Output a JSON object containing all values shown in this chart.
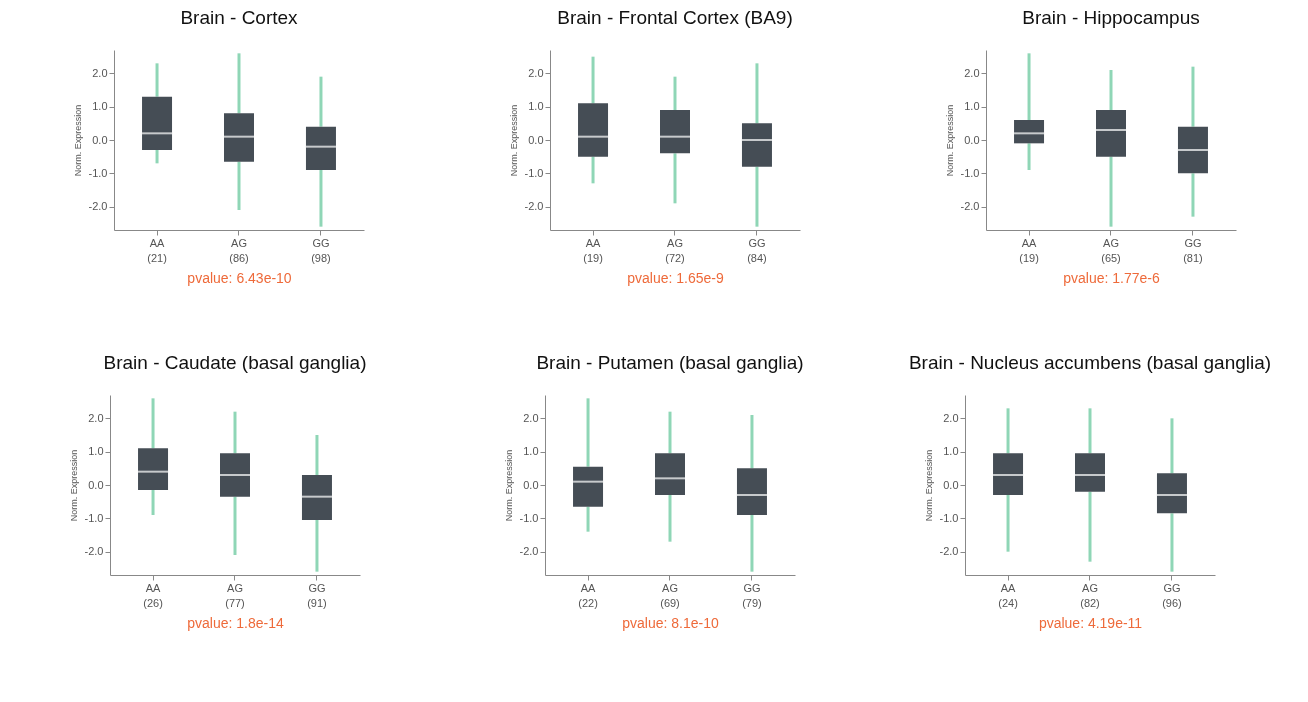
{
  "chart_data": [
    {
      "type": "box",
      "title": "Brain - Cortex",
      "ylabel": "Norm. Expression",
      "categories": [
        "AA\n(21)",
        "AG\n(86)",
        "GG\n(98)"
      ],
      "color": "#454d55",
      "annotations": [
        "pvalue: 6.43e-10"
      ],
      "ylim": [
        -2.7,
        2.7
      ],
      "yticks": [
        {
          "value": -2,
          "label": "-2.0"
        },
        {
          "value": -1,
          "label": "-1.0"
        },
        {
          "value": 0,
          "label": "0.0"
        },
        {
          "value": 1,
          "label": "1.0"
        },
        {
          "value": 2,
          "label": "2.0"
        }
      ],
      "boxes": [
        {
          "low": -0.7,
          "q1": -0.3,
          "median": 0.2,
          "q3": 1.3,
          "high": 2.3
        },
        {
          "low": -2.1,
          "q1": -0.65,
          "median": 0.1,
          "q3": 0.8,
          "high": 2.6
        },
        {
          "low": -2.6,
          "q1": -0.9,
          "median": -0.2,
          "q3": 0.4,
          "high": 1.9
        }
      ]
    },
    {
      "type": "box",
      "title": "Brain - Frontal Cortex (BA9)",
      "ylabel": "Norm. Expression",
      "categories": [
        "AA\n(19)",
        "AG\n(72)",
        "GG\n(84)"
      ],
      "color": "#454d55",
      "annotations": [
        "pvalue: 1.65e-9"
      ],
      "ylim": [
        -2.7,
        2.7
      ],
      "yticks": [
        {
          "value": -2,
          "label": "-2.0"
        },
        {
          "value": -1,
          "label": "-1.0"
        },
        {
          "value": 0,
          "label": "0.0"
        },
        {
          "value": 1,
          "label": "1.0"
        },
        {
          "value": 2,
          "label": "2.0"
        }
      ],
      "boxes": [
        {
          "low": -1.3,
          "q1": -0.5,
          "median": 0.1,
          "q3": 1.1,
          "high": 2.5
        },
        {
          "low": -1.9,
          "q1": -0.4,
          "median": 0.1,
          "q3": 0.9,
          "high": 1.9
        },
        {
          "low": -2.6,
          "q1": -0.8,
          "median": 0.0,
          "q3": 0.5,
          "high": 2.3
        }
      ]
    },
    {
      "type": "box",
      "title": "Brain - Hippocampus",
      "ylabel": "Norm. Expression",
      "categories": [
        "AA\n(19)",
        "AG\n(65)",
        "GG\n(81)"
      ],
      "color": "#454d55",
      "annotations": [
        "pvalue: 1.77e-6"
      ],
      "ylim": [
        -2.7,
        2.7
      ],
      "yticks": [
        {
          "value": -2,
          "label": "-2.0"
        },
        {
          "value": -1,
          "label": "-1.0"
        },
        {
          "value": 0,
          "label": "0.0"
        },
        {
          "value": 1,
          "label": "1.0"
        },
        {
          "value": 2,
          "label": "2.0"
        }
      ],
      "boxes": [
        {
          "low": -0.9,
          "q1": -0.1,
          "median": 0.2,
          "q3": 0.6,
          "high": 2.6
        },
        {
          "low": -2.6,
          "q1": -0.5,
          "median": 0.3,
          "q3": 0.9,
          "high": 2.1
        },
        {
          "low": -2.3,
          "q1": -1.0,
          "median": -0.3,
          "q3": 0.4,
          "high": 2.2
        }
      ]
    },
    {
      "type": "box",
      "title": "Brain - Caudate (basal ganglia)",
      "ylabel": "Norm. Expression",
      "categories": [
        "AA\n(26)",
        "AG\n(77)",
        "GG\n(91)"
      ],
      "color": "#454d55",
      "annotations": [
        "pvalue: 1.8e-14"
      ],
      "ylim": [
        -2.7,
        2.7
      ],
      "yticks": [
        {
          "value": -2,
          "label": "-2.0"
        },
        {
          "value": -1,
          "label": "-1.0"
        },
        {
          "value": 0,
          "label": "0.0"
        },
        {
          "value": 1,
          "label": "1.0"
        },
        {
          "value": 2,
          "label": "2.0"
        }
      ],
      "boxes": [
        {
          "low": -0.9,
          "q1": -0.15,
          "median": 0.4,
          "q3": 1.1,
          "high": 2.6
        },
        {
          "low": -2.1,
          "q1": -0.35,
          "median": 0.3,
          "q3": 0.95,
          "high": 2.2
        },
        {
          "low": -2.6,
          "q1": -1.05,
          "median": -0.35,
          "q3": 0.3,
          "high": 1.5
        }
      ]
    },
    {
      "type": "box",
      "title": "Brain - Putamen (basal ganglia)",
      "ylabel": "Norm. Expression",
      "categories": [
        "AA\n(22)",
        "AG\n(69)",
        "GG\n(79)"
      ],
      "color": "#454d55",
      "annotations": [
        "pvalue: 8.1e-10"
      ],
      "ylim": [
        -2.7,
        2.7
      ],
      "yticks": [
        {
          "value": -2,
          "label": "-2.0"
        },
        {
          "value": -1,
          "label": "-1.0"
        },
        {
          "value": 0,
          "label": "0.0"
        },
        {
          "value": 1,
          "label": "1.0"
        },
        {
          "value": 2,
          "label": "2.0"
        }
      ],
      "boxes": [
        {
          "low": -1.4,
          "q1": -0.65,
          "median": 0.1,
          "q3": 0.55,
          "high": 2.6
        },
        {
          "low": -1.7,
          "q1": -0.3,
          "median": 0.2,
          "q3": 0.95,
          "high": 2.2
        },
        {
          "low": -2.6,
          "q1": -0.9,
          "median": -0.3,
          "q3": 0.5,
          "high": 2.1
        }
      ]
    },
    {
      "type": "box",
      "title": "Brain - Nucleus accumbens (basal ganglia)",
      "ylabel": "Norm. Expression",
      "categories": [
        "AA\n(24)",
        "AG\n(82)",
        "GG\n(96)"
      ],
      "color": "#454d55",
      "annotations": [
        "pvalue: 4.19e-11"
      ],
      "ylim": [
        -2.7,
        2.7
      ],
      "yticks": [
        {
          "value": -2,
          "label": "-2.0"
        },
        {
          "value": -1,
          "label": "-1.0"
        },
        {
          "value": 0,
          "label": "0.0"
        },
        {
          "value": 1,
          "label": "1.0"
        },
        {
          "value": 2,
          "label": "2.0"
        }
      ],
      "boxes": [
        {
          "low": -2.0,
          "q1": -0.3,
          "median": 0.3,
          "q3": 0.95,
          "high": 2.3
        },
        {
          "low": -2.3,
          "q1": -0.2,
          "median": 0.3,
          "q3": 0.95,
          "high": 2.3
        },
        {
          "low": -2.6,
          "q1": -0.85,
          "median": -0.3,
          "q3": 0.35,
          "high": 2.0
        }
      ]
    }
  ]
}
